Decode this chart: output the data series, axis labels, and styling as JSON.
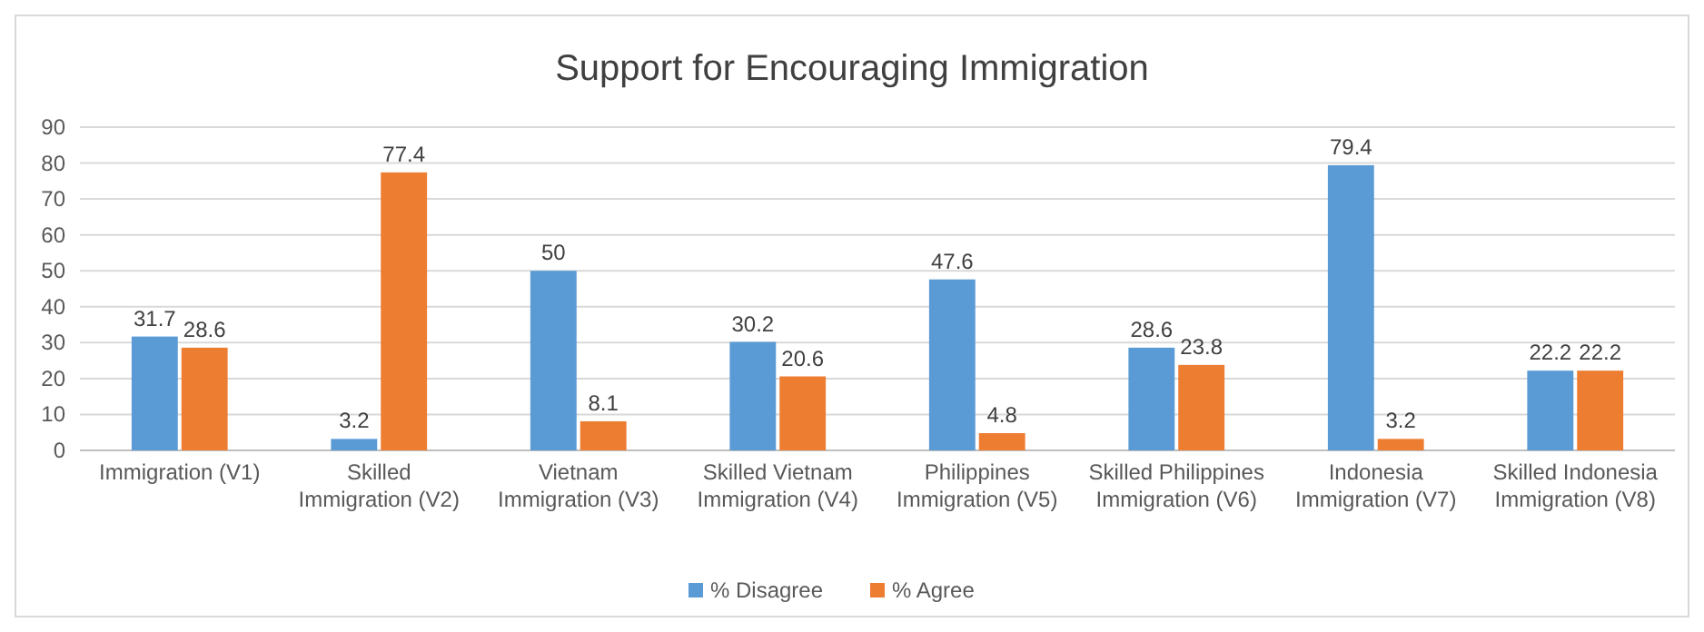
{
  "chart_data": {
    "type": "bar",
    "title": "Support for Encouraging Immigration",
    "categories": [
      "Immigration (V1)",
      "Skilled\nImmigration (V2)",
      "Vietnam\nImmigration (V3)",
      "Skilled Vietnam\nImmigration (V4)",
      "Philippines\nImmigration (V5)",
      "Skilled Philippines\nImmigration (V6)",
      "Indonesia\nImmigration (V7)",
      "Skilled Indonesia\nImmigration (V8)"
    ],
    "series": [
      {
        "name": "% Disagree",
        "color": "#5b9bd5",
        "values": [
          31.7,
          3.2,
          50,
          30.2,
          47.6,
          28.6,
          79.4,
          22.2
        ]
      },
      {
        "name": "% Agree",
        "color": "#ed7d31",
        "values": [
          28.6,
          77.4,
          8.1,
          20.6,
          4.8,
          23.8,
          3.2,
          22.2
        ]
      }
    ],
    "ylim": [
      0,
      90
    ],
    "yticks": [
      0,
      10,
      20,
      30,
      40,
      50,
      60,
      70,
      80,
      90
    ],
    "grid": "y",
    "legend": "bottom",
    "data_labels": true
  }
}
